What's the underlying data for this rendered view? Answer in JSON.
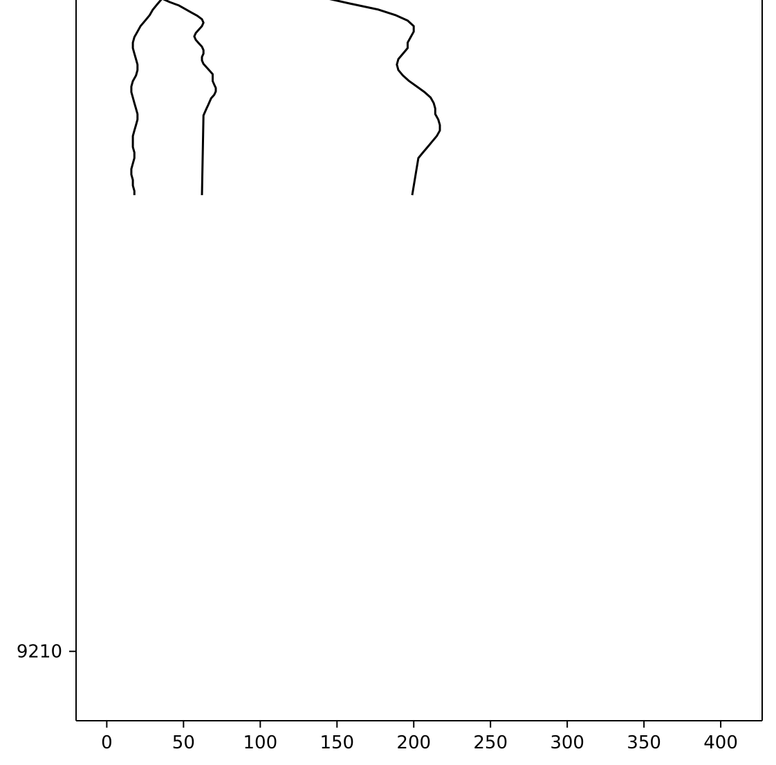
{
  "chart_data": {
    "type": "line",
    "title": "",
    "xlabel": "",
    "ylabel": "",
    "xlim": [
      -20,
      427
    ],
    "ylim": [
      9199.9,
      9305
    ],
    "x_ticks": [
      0,
      50,
      100,
      150,
      200,
      250,
      300,
      350,
      400
    ],
    "x_tick_labels": [
      "0",
      "50",
      "100",
      "150",
      "200",
      "250",
      "300",
      "350",
      "400"
    ],
    "y_ticks": [
      9210
    ],
    "y_tick_labels": [
      "9210"
    ],
    "grid": false,
    "legend": "none",
    "line_color": "#000000",
    "series": [
      {
        "x": [
          36,
          33,
          30,
          28,
          25,
          22,
          20,
          18,
          17,
          17,
          18,
          19,
          20,
          20,
          19,
          17,
          16,
          16,
          17,
          18,
          19,
          20,
          20,
          19,
          18,
          17,
          17,
          17,
          18,
          18,
          17,
          16,
          16,
          17,
          17,
          18,
          18
        ],
        "y": [
          9305,
          9304.2,
          9303.4,
          9302.6,
          9301.8,
          9301,
          9300.2,
          9299.4,
          9298.6,
          9297.8,
          9297,
          9296.2,
          9295.4,
          9294.6,
          9293.8,
          9293,
          9292.2,
          9291.4,
          9290.6,
          9289.8,
          9289,
          9288.2,
          9287.4,
          9286.6,
          9285.8,
          9285,
          9284.2,
          9283.4,
          9282.6,
          9281.8,
          9281,
          9280.2,
          9279.4,
          9278.6,
          9277.8,
          9277,
          9276.4
        ]
      },
      {
        "x": [
          36,
          41,
          47,
          51,
          55,
          59,
          62,
          63,
          62,
          60,
          58,
          57,
          58,
          60,
          62,
          63,
          63,
          62,
          62,
          63,
          65,
          67,
          69,
          69,
          69,
          70,
          71,
          71,
          70,
          68,
          67,
          66,
          65,
          64,
          63,
          62
        ],
        "y": [
          9305,
          9304.5,
          9304,
          9303.5,
          9303,
          9302.5,
          9302,
          9301.5,
          9301,
          9300.5,
          9300,
          9299.5,
          9299,
          9298.5,
          9298,
          9297.5,
          9297,
          9296.5,
          9296,
          9295.5,
          9295,
          9294.5,
          9294,
          9293.5,
          9293,
          9292.5,
          9292,
          9291.5,
          9291,
          9290.5,
          9290,
          9289.5,
          9289,
          9288.5,
          9288,
          9276.4
        ]
      },
      {
        "x": [
          144,
          160,
          177,
          188,
          196,
          200,
          200,
          198,
          196,
          196,
          193,
          190,
          189,
          190,
          193,
          197,
          202,
          207,
          211,
          213,
          214,
          214,
          216,
          217,
          217,
          215,
          212,
          209,
          206,
          203,
          199
        ],
        "y": [
          9305,
          9304.2,
          9303.4,
          9302.6,
          9301.8,
          9301,
          9300.2,
          9299.4,
          9298.6,
          9297.8,
          9297,
          9296.2,
          9295.4,
          9294.6,
          9293.8,
          9293,
          9292.2,
          9291.4,
          9290.6,
          9289.8,
          9289,
          9288.2,
          9287.4,
          9286.6,
          9285.8,
          9285,
          9284.2,
          9283.4,
          9282.6,
          9281.8,
          9276.4
        ]
      }
    ]
  }
}
